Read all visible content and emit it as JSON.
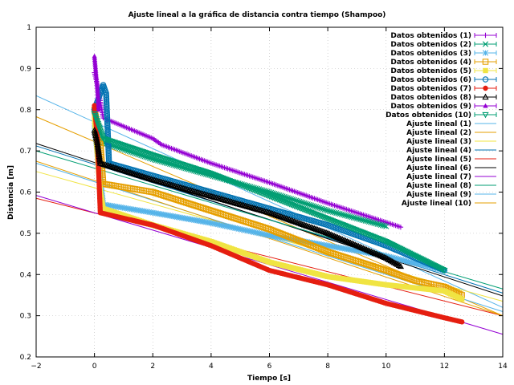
{
  "chart_data": {
    "type": "scatter",
    "title": "Ajuste lineal a la gráfica de distancia contra tiempo (Shampoo)",
    "xlabel": "Tiempo [s]",
    "ylabel": "Distancia [m]",
    "xlim": [
      -2,
      14
    ],
    "ylim": [
      0.2,
      1
    ],
    "xticks": [
      -2,
      0,
      2,
      4,
      6,
      8,
      10,
      12,
      14
    ],
    "xtick_labels": [
      "−2",
      "0",
      "2",
      "4",
      "6",
      "8",
      "10",
      "12",
      "14"
    ],
    "yticks": [
      0.2,
      0.3,
      0.4,
      0.5,
      0.6,
      0.7,
      0.8,
      0.9,
      1.0
    ],
    "ytick_labels": [
      "0.2",
      "0.3",
      "0.4",
      "0.5",
      "0.6",
      "0.7",
      "0.8",
      "0.9",
      "1"
    ],
    "grid": true,
    "legend_position": "top-right",
    "data_series": [
      {
        "name": "Datos obtenidos (1)",
        "color": "#9400d3",
        "marker": "plus",
        "points": [
          [
            0.0,
            0.89
          ],
          [
            0.1,
            0.86
          ],
          [
            0.3,
            0.78
          ],
          [
            2.0,
            0.73
          ],
          [
            2.3,
            0.715
          ],
          [
            4.0,
            0.67
          ],
          [
            6.0,
            0.623
          ],
          [
            8.0,
            0.573
          ],
          [
            10.5,
            0.515
          ]
        ]
      },
      {
        "name": "Datos obtenidos (2)",
        "color": "#009e73",
        "marker": "cross",
        "points": [
          [
            0.0,
            0.8
          ],
          [
            0.1,
            0.74
          ],
          [
            0.3,
            0.72
          ],
          [
            2.0,
            0.68
          ],
          [
            4.0,
            0.64
          ],
          [
            6.0,
            0.6
          ],
          [
            8.0,
            0.555
          ],
          [
            10.0,
            0.517
          ]
        ]
      },
      {
        "name": "Datos obtenidos (3)",
        "color": "#56b4e9",
        "marker": "star",
        "points": [
          [
            0.0,
            0.76
          ],
          [
            0.2,
            0.63
          ],
          [
            0.3,
            0.57
          ],
          [
            2.0,
            0.55
          ],
          [
            4.0,
            0.525
          ],
          [
            6.0,
            0.495
          ],
          [
            8.0,
            0.47
          ],
          [
            10.0,
            0.445
          ],
          [
            12.0,
            0.41
          ]
        ]
      },
      {
        "name": "Datos obtenidos (4)",
        "color": "#e69f00",
        "marker": "square",
        "points": [
          [
            0.0,
            0.8
          ],
          [
            0.2,
            0.72
          ],
          [
            0.3,
            0.62
          ],
          [
            2.0,
            0.6
          ],
          [
            4.0,
            0.555
          ],
          [
            6.0,
            0.51
          ],
          [
            8.0,
            0.455
          ],
          [
            10.0,
            0.41
          ],
          [
            11.0,
            0.385
          ],
          [
            12.0,
            0.37
          ],
          [
            12.6,
            0.35
          ]
        ]
      },
      {
        "name": "Datos obtenidos (5)",
        "color": "#f0e442",
        "marker": "filled-square",
        "points": [
          [
            0.0,
            0.78
          ],
          [
            0.2,
            0.6
          ],
          [
            0.3,
            0.56
          ],
          [
            2.0,
            0.52
          ],
          [
            4.0,
            0.48
          ],
          [
            6.0,
            0.43
          ],
          [
            8.0,
            0.395
          ],
          [
            10.0,
            0.375
          ],
          [
            12.0,
            0.36
          ],
          [
            12.6,
            0.34
          ]
        ]
      },
      {
        "name": "Datos obtenidos (6)",
        "color": "#0072b2",
        "marker": "circle",
        "points": [
          [
            0.0,
            0.8
          ],
          [
            0.3,
            0.86
          ],
          [
            0.4,
            0.84
          ],
          [
            0.5,
            0.67
          ],
          [
            2.0,
            0.64
          ],
          [
            4.0,
            0.6
          ],
          [
            6.0,
            0.56
          ],
          [
            8.0,
            0.52
          ],
          [
            10.0,
            0.47
          ],
          [
            12.0,
            0.41
          ]
        ]
      },
      {
        "name": "Datos obtenidos (7)",
        "color": "#e51e10",
        "marker": "filled-circle",
        "points": [
          [
            0.0,
            0.81
          ],
          [
            0.1,
            0.73
          ],
          [
            0.2,
            0.55
          ],
          [
            2.0,
            0.52
          ],
          [
            4.0,
            0.47
          ],
          [
            6.0,
            0.41
          ],
          [
            8.0,
            0.375
          ],
          [
            10.0,
            0.33
          ],
          [
            12.0,
            0.295
          ],
          [
            12.6,
            0.285
          ]
        ]
      },
      {
        "name": "Datos obtenidos (8)",
        "color": "#000000",
        "marker": "triangle",
        "points": [
          [
            0.0,
            0.75
          ],
          [
            0.1,
            0.72
          ],
          [
            0.2,
            0.67
          ],
          [
            2.0,
            0.63
          ],
          [
            4.0,
            0.59
          ],
          [
            6.0,
            0.55
          ],
          [
            8.0,
            0.5
          ],
          [
            10.0,
            0.44
          ],
          [
            10.5,
            0.42
          ]
        ]
      },
      {
        "name": "Datos obtenidos (9)",
        "color": "#9400d3",
        "marker": "filled-triangle",
        "points": [
          [
            0.0,
            0.93
          ],
          [
            0.05,
            0.89
          ],
          [
            0.1,
            0.85
          ],
          [
            0.15,
            0.8
          ]
        ]
      },
      {
        "name": "Datos obtenidos (10)",
        "color": "#009e73",
        "marker": "inverted-triangle",
        "points": [
          [
            0.0,
            0.79
          ],
          [
            0.1,
            0.77
          ],
          [
            0.3,
            0.73
          ],
          [
            2.0,
            0.69
          ],
          [
            4.0,
            0.645
          ],
          [
            6.0,
            0.59
          ],
          [
            8.0,
            0.535
          ],
          [
            10.0,
            0.48
          ],
          [
            12.0,
            0.41
          ]
        ]
      }
    ],
    "fit_lines": [
      {
        "name": "Ajuste lineal (1)",
        "color": "#56b4e9",
        "x": [
          -2,
          14
        ],
        "y": [
          0.834,
          0.32
        ]
      },
      {
        "name": "Ajuste lineal (2)",
        "color": "#e69f00",
        "x": [
          -2,
          14
        ],
        "y": [
          0.783,
          0.3
        ]
      },
      {
        "name": "Ajuste lineal (3)",
        "color": "#f0e442",
        "x": [
          -2,
          14
        ],
        "y": [
          0.65,
          0.335
        ]
      },
      {
        "name": "Ajuste lineal (4)",
        "color": "#0072b2",
        "x": [
          -2,
          14
        ],
        "y": [
          0.712,
          0.355
        ]
      },
      {
        "name": "Ajuste lineal (5)",
        "color": "#e51e10",
        "x": [
          -2,
          14
        ],
        "y": [
          0.585,
          0.3
        ]
      },
      {
        "name": "Ajuste lineal (6)",
        "color": "#000000",
        "x": [
          -2,
          14
        ],
        "y": [
          0.718,
          0.348
        ]
      },
      {
        "name": "Ajuste lineal (7)",
        "color": "#9400d3",
        "x": [
          -2,
          14
        ],
        "y": [
          0.592,
          0.255
        ]
      },
      {
        "name": "Ajuste lineal (8)",
        "color": "#009e73",
        "x": [
          -2,
          14
        ],
        "y": [
          0.7,
          0.365
        ]
      },
      {
        "name": "Ajuste lineal (9)",
        "color": "#56b4e9",
        "x": [
          -2,
          14
        ],
        "y": [
          0.67,
          0.31
        ]
      },
      {
        "name": "Ajuste lineal (10)",
        "color": "#e69f00",
        "x": [
          -2,
          14
        ],
        "y": [
          0.675,
          0.3
        ]
      }
    ]
  }
}
